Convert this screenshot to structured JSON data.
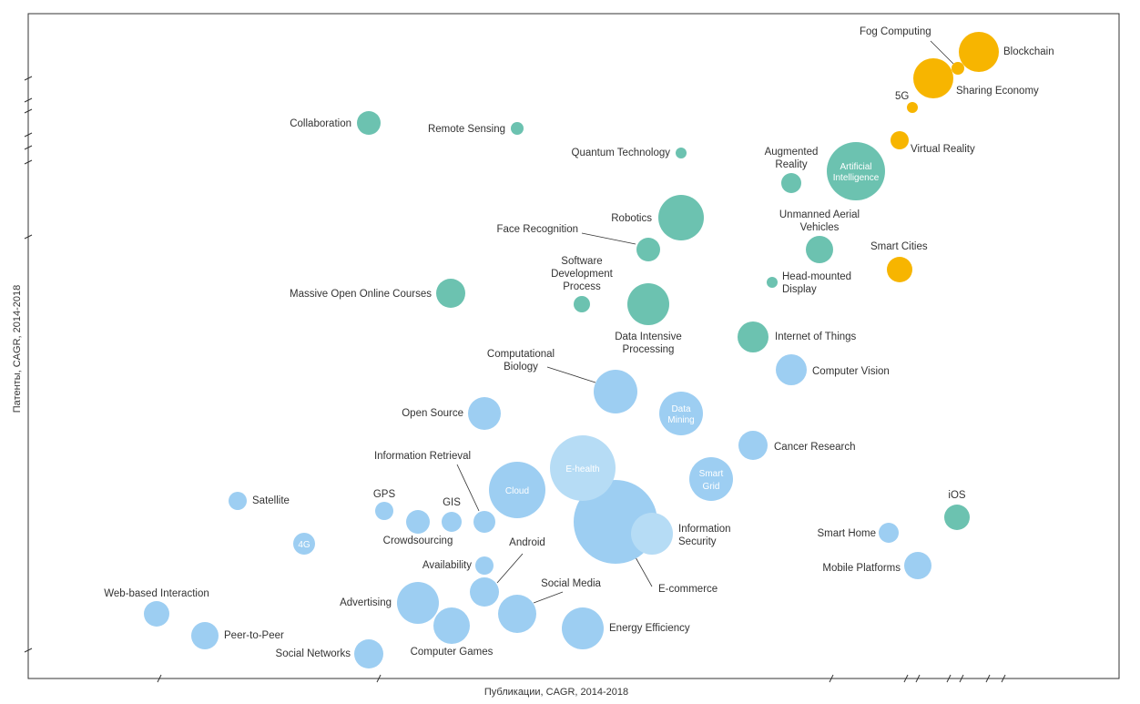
{
  "chart_data": {
    "type": "scatter",
    "subtype": "bubble",
    "xlabel": "Публикации, CAGR, 2014-2018",
    "ylabel": "Патенты, CAGR, 2014-2018",
    "grid": false,
    "colors": {
      "blue": "#9dcef2",
      "lightblue": "#b6dcf5",
      "teal": "#6cc2b0",
      "orange": "#f7b500"
    },
    "points": [
      {
        "name": "Blockchain",
        "color": "orange",
        "size": 22
      },
      {
        "name": "Fog Computing",
        "color": "orange",
        "size": 7
      },
      {
        "name": "Sharing Economy",
        "color": "orange",
        "size": 22
      },
      {
        "name": "5G",
        "color": "orange",
        "size": 6
      },
      {
        "name": "Virtual Reality",
        "color": "orange",
        "size": 10
      },
      {
        "name": "Smart Cities",
        "color": "orange",
        "size": 14
      },
      {
        "name": "Collaboration",
        "color": "teal",
        "size": 13
      },
      {
        "name": "Remote Sensing",
        "color": "teal",
        "size": 7
      },
      {
        "name": "Quantum Technology",
        "color": "teal",
        "size": 6
      },
      {
        "name": "Augmented Reality",
        "color": "teal",
        "size": 11
      },
      {
        "name": "Artificial Intelligence",
        "color": "teal",
        "size": 32
      },
      {
        "name": "Robotics",
        "color": "teal",
        "size": 25
      },
      {
        "name": "Face Recognition",
        "color": "teal",
        "size": 13
      },
      {
        "name": "Unmanned Aerial Vehicles",
        "color": "teal",
        "size": 15
      },
      {
        "name": "Head-mounted Display",
        "color": "teal",
        "size": 6
      },
      {
        "name": "Massive Open Online Courses",
        "color": "teal",
        "size": 16
      },
      {
        "name": "Software Development Process",
        "color": "teal",
        "size": 9
      },
      {
        "name": "Data Intensive Processing",
        "color": "teal",
        "size": 23
      },
      {
        "name": "Internet of Things",
        "color": "teal",
        "size": 17
      },
      {
        "name": "iOS",
        "color": "teal",
        "size": 14
      },
      {
        "name": "Computer Vision",
        "color": "blue",
        "size": 17
      },
      {
        "name": "Computational Biology",
        "color": "blue",
        "size": 24
      },
      {
        "name": "Data Mining",
        "color": "blue",
        "size": 24
      },
      {
        "name": "Open Source",
        "color": "blue",
        "size": 18
      },
      {
        "name": "Cancer Research",
        "color": "blue",
        "size": 16
      },
      {
        "name": "E-health",
        "color": "lightblue",
        "size": 36
      },
      {
        "name": "Cloud",
        "color": "blue",
        "size": 31
      },
      {
        "name": "Smart Grid",
        "color": "blue",
        "size": 24
      },
      {
        "name": "Information Retrieval",
        "color": "blue",
        "size": 12
      },
      {
        "name": "Satellite",
        "color": "blue",
        "size": 10
      },
      {
        "name": "GPS",
        "color": "blue",
        "size": 10
      },
      {
        "name": "GIS",
        "color": "blue",
        "size": 11
      },
      {
        "name": "Crowdsourcing",
        "color": "blue",
        "size": 13
      },
      {
        "name": "4G",
        "color": "blue",
        "size": 12
      },
      {
        "name": "E-commerce",
        "color": "blue",
        "size": 46
      },
      {
        "name": "Information Security",
        "color": "lightblue",
        "size": 23
      },
      {
        "name": "Smart Home",
        "color": "blue",
        "size": 11
      },
      {
        "name": "Mobile Platforms",
        "color": "blue",
        "size": 15
      },
      {
        "name": "Availability",
        "color": "blue",
        "size": 10
      },
      {
        "name": "Android",
        "color": "blue",
        "size": 16
      },
      {
        "name": "Social Media",
        "color": "blue",
        "size": 21
      },
      {
        "name": "Advertising",
        "color": "blue",
        "size": 23
      },
      {
        "name": "Computer Games",
        "color": "blue",
        "size": 20
      },
      {
        "name": "Energy Efficiency",
        "color": "blue",
        "size": 23
      },
      {
        "name": "Web-based Interaction",
        "color": "blue",
        "size": 14
      },
      {
        "name": "Peer-to-Peer",
        "color": "blue",
        "size": 15
      },
      {
        "name": "Social Networks",
        "color": "blue",
        "size": 16
      }
    ],
    "labels": {
      "Blockchain": "Blockchain",
      "Fog Computing": "Fog Computing",
      "Sharing Economy": "Sharing Economy",
      "5G": "5G",
      "Virtual Reality": "Virtual Reality",
      "Smart Cities": "Smart Cities",
      "Collaboration": "Collaboration",
      "Remote Sensing": "Remote Sensing",
      "Quantum Technology": "Quantum Technology",
      "Augmented Reality": [
        "Augmented",
        "Reality"
      ],
      "Artificial Intelligence": [
        "Artificial",
        "Intelligence"
      ],
      "Robotics": "Robotics",
      "Face Recognition": "Face Recognition",
      "Unmanned Aerial Vehicles": [
        "Unmanned Aerial",
        "Vehicles"
      ],
      "Head-mounted Display": [
        "Head-mounted",
        "Display"
      ],
      "Massive Open Online Courses": "Massive Open Online Courses",
      "Software Development Process": [
        "Software",
        "Development",
        "Process"
      ],
      "Data Intensive Processing": [
        "Data Intensive",
        "Processing"
      ],
      "Internet of Things": "Internet of Things",
      "iOS": "iOS",
      "Computer Vision": "Computer Vision",
      "Computational Biology": [
        "Computational",
        "Biology"
      ],
      "Data Mining": [
        "Data",
        "Mining"
      ],
      "Open Source": "Open Source",
      "Cancer Research": "Cancer Research",
      "E-health": "E-health",
      "Cloud": "Cloud",
      "Smart Grid": [
        "Smart",
        "Grid"
      ],
      "Information Retrieval": "Information Retrieval",
      "Satellite": "Satellite",
      "GPS": "GPS",
      "GIS": "GIS",
      "Crowdsourcing": "Crowdsourcing",
      "4G": "4G",
      "E-commerce": "E-commerce",
      "Information Security": [
        "Information",
        "Security"
      ],
      "Smart Home": "Smart Home",
      "Mobile Platforms": "Mobile Platforms",
      "Availability": "Availability",
      "Android": "Android",
      "Social Media": "Social Media",
      "Advertising": "Advertising",
      "Computer Games": "Computer Games",
      "Energy Efficiency": "Energy Efficiency",
      "Web-based Interaction": "Web-based Interaction",
      "Peer-to-Peer": "Peer-to-Peer",
      "Social Networks": "Social Networks"
    }
  }
}
